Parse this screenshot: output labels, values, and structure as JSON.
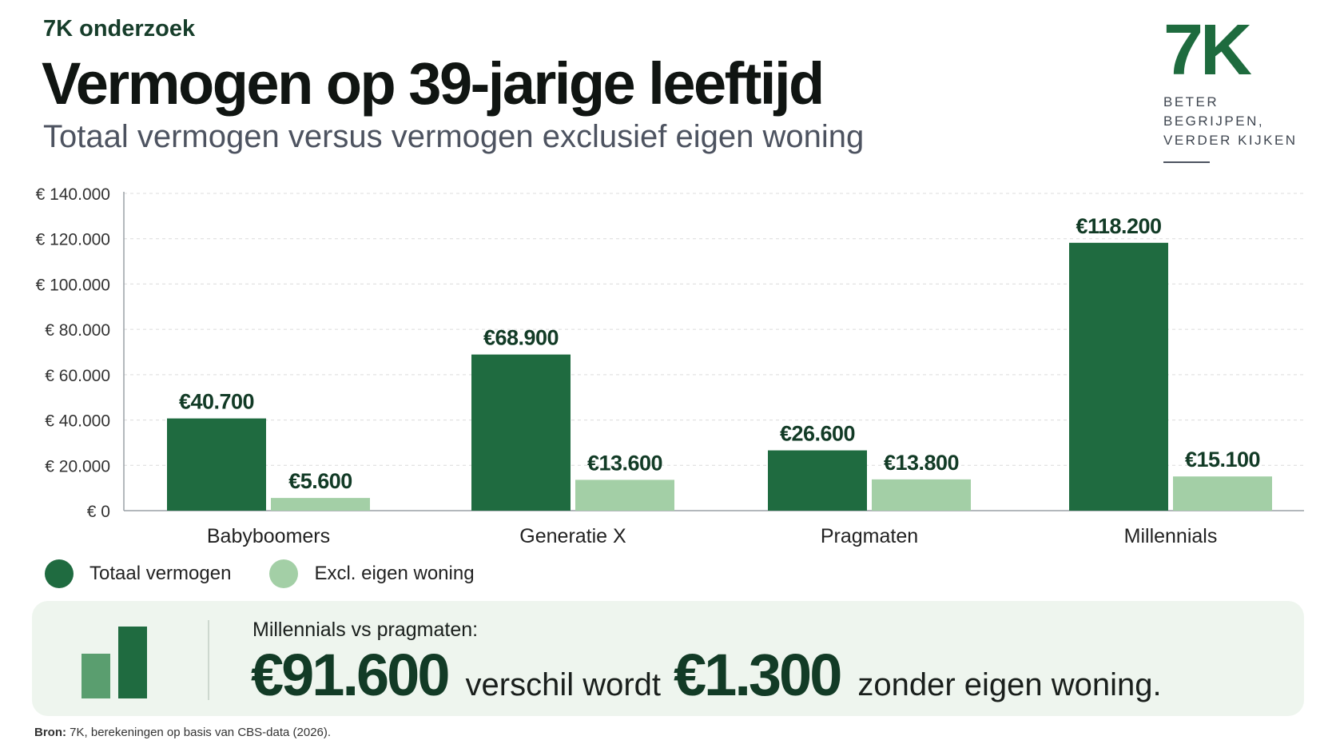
{
  "header": {
    "kicker": "7K onderzoek",
    "title": "Vermogen op 39-jarige leeftijd",
    "subtitle": "Totaal vermogen versus vermogen exclusief eigen woning"
  },
  "logo": {
    "mark": "7K",
    "tagline_1": "BETER",
    "tagline_2": "BEGRIJPEN,",
    "tagline_3": "VERDER KIJKEN"
  },
  "chart_data": {
    "type": "bar",
    "categories": [
      "Babyboomers",
      "Generatie X",
      "Pragmaten",
      "Millennials"
    ],
    "series": [
      {
        "name": "Totaal vermogen",
        "values": [
          40700,
          68900,
          26600,
          118200
        ],
        "labels": [
          "€40.700",
          "€68.900",
          "€26.600",
          "€118.200"
        ],
        "color": "#1f6b40"
      },
      {
        "name": "Excl. eigen woning",
        "values": [
          5600,
          13600,
          13800,
          15100
        ],
        "labels": [
          "€5.600",
          "€13.600",
          "€13.800",
          "€15.100"
        ],
        "color": "#a3cfa6"
      }
    ],
    "ylim": [
      0,
      140000
    ],
    "yticks": [
      0,
      20000,
      40000,
      60000,
      80000,
      100000,
      120000,
      140000
    ],
    "ytick_labels": [
      "€ 0",
      "€ 20.000",
      "€ 40.000",
      "€ 60.000",
      "€ 80.000",
      "€ 100.000",
      "€ 120.000",
      "€ 140.000"
    ],
    "grid": true,
    "legend_position": "bottom-left",
    "label_color": "#123b26"
  },
  "callout": {
    "lead": "Millennials vs pragmaten:",
    "value_1": "€91.600",
    "middle": "verschil wordt",
    "value_2": "€1.300",
    "tail": "zonder eigen woning.",
    "icon": "bar-chart-icon"
  },
  "source": {
    "label": "Bron:",
    "text": "7K, berekeningen op basis van CBS-data (2026)."
  }
}
